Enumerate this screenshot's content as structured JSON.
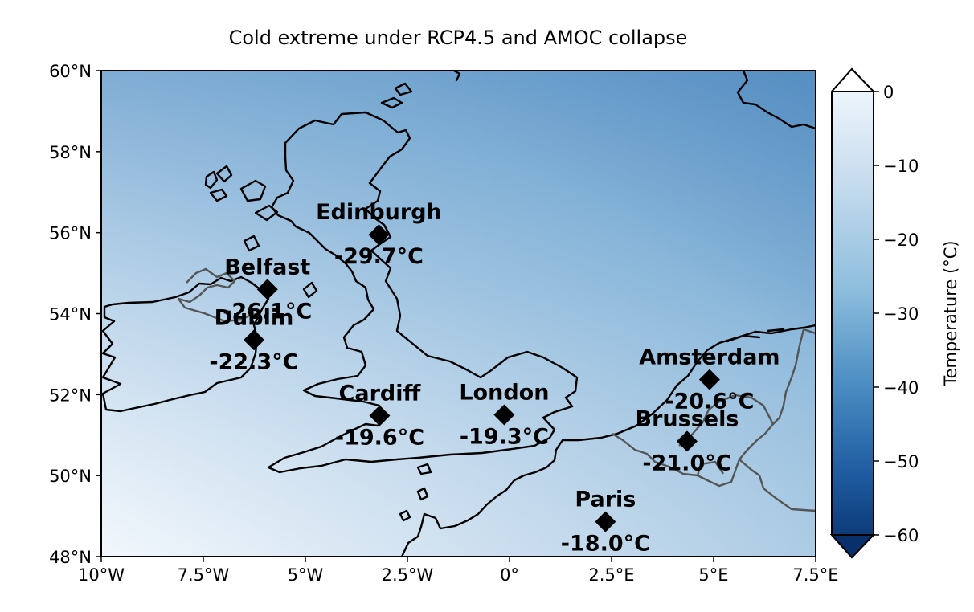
{
  "title": "Cold extreme under RCP4.5 and AMOC collapse",
  "map": {
    "lon_range": [
      -10,
      7.5
    ],
    "lat_range": [
      48,
      60
    ],
    "x_ticks": [
      {
        "lon": -10,
        "label": "10°W"
      },
      {
        "lon": -7.5,
        "label": "7.5°W"
      },
      {
        "lon": -5,
        "label": "5°W"
      },
      {
        "lon": -2.5,
        "label": "2.5°W"
      },
      {
        "lon": 0,
        "label": "0°"
      },
      {
        "lon": 2.5,
        "label": "2.5°E"
      },
      {
        "lon": 5,
        "label": "5°E"
      },
      {
        "lon": 7.5,
        "label": "7.5°E"
      }
    ],
    "y_ticks": [
      {
        "lat": 60,
        "label": "60°N"
      },
      {
        "lat": 58,
        "label": "58°N"
      },
      {
        "lat": 56,
        "label": "56°N"
      },
      {
        "lat": 54,
        "label": "54°N"
      },
      {
        "lat": 52,
        "label": "52°N"
      },
      {
        "lat": 50,
        "label": "50°N"
      },
      {
        "lat": 48,
        "label": "48°N"
      }
    ]
  },
  "colorbar": {
    "label": "Temperature (°C)",
    "min": -60,
    "max": 0,
    "ticks": [
      {
        "value": 0,
        "label": "0"
      },
      {
        "value": -10,
        "label": "−10"
      },
      {
        "value": -20,
        "label": "−20"
      },
      {
        "value": -30,
        "label": "−30"
      },
      {
        "value": -40,
        "label": "−40"
      },
      {
        "value": -50,
        "label": "−50"
      },
      {
        "value": -60,
        "label": "−60"
      }
    ],
    "color_low": "#08306b",
    "color_mid": "#6baed6",
    "color_high": "#f7fbff"
  },
  "cities": [
    {
      "name": "Edinburgh",
      "temp_label": "-29.7°C",
      "value": -29.7,
      "lon": -3.2,
      "lat": 55.95
    },
    {
      "name": "Belfast",
      "temp_label": "-26.1°C",
      "value": -26.1,
      "lon": -5.93,
      "lat": 54.6
    },
    {
      "name": "Dublin",
      "temp_label": "-22.3°C",
      "value": -22.3,
      "lon": -6.26,
      "lat": 53.35
    },
    {
      "name": "Cardiff",
      "temp_label": "-19.6°C",
      "value": -19.6,
      "lon": -3.18,
      "lat": 51.48
    },
    {
      "name": "London",
      "temp_label": "-19.3°C",
      "value": -19.3,
      "lon": -0.13,
      "lat": 51.5
    },
    {
      "name": "Amsterdam",
      "temp_label": "-20.6°C",
      "value": -20.6,
      "lon": 4.9,
      "lat": 52.37
    },
    {
      "name": "Brussels",
      "temp_label": "-21.0°C",
      "value": -21.0,
      "lon": 4.35,
      "lat": 50.85
    },
    {
      "name": "Paris",
      "temp_label": "-18.0°C",
      "value": -18.0,
      "lon": 2.35,
      "lat": 48.86
    }
  ]
}
